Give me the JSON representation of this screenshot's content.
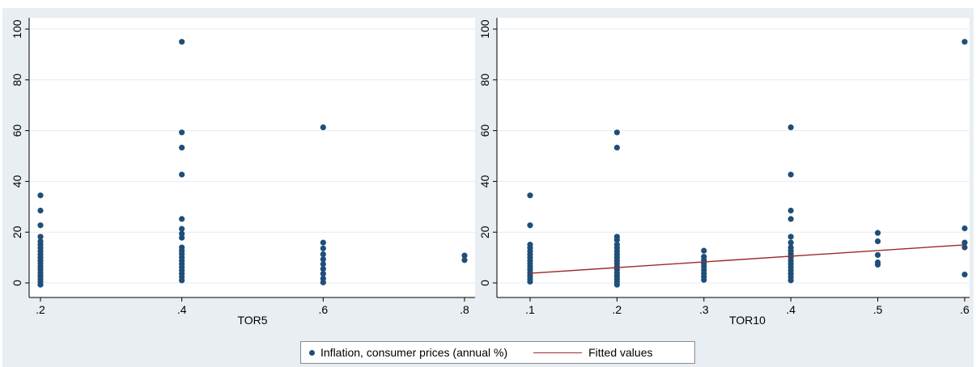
{
  "legend": {
    "scatter_label": "Inflation, consumer prices (annual %)",
    "line_label": "Fitted values"
  },
  "colors": {
    "point": "#1f4e79",
    "fit_line": "#9b2a2a",
    "outer_background": "#e8eef2",
    "plot_background": "#ffffff",
    "grid": "#e6ecf0"
  },
  "chart_data": [
    {
      "type": "scatter",
      "xlabel": "TOR5",
      "ylabel": "",
      "xticks": [
        0.2,
        0.4,
        0.6,
        0.8
      ],
      "xtick_labels": [
        ".2",
        ".4",
        ".6",
        ".8"
      ],
      "yticks": [
        0,
        20,
        40,
        60,
        80,
        100
      ],
      "xlim": [
        0.2,
        0.8
      ],
      "ylim": [
        0,
        100
      ],
      "grid": true,
      "series": [
        {
          "name": "Inflation, consumer prices (annual %)",
          "points": [
            [
              0.2,
              34.5
            ],
            [
              0.2,
              28.5
            ],
            [
              0.2,
              22.7
            ],
            [
              0.2,
              18.2
            ],
            [
              0.2,
              16.4
            ],
            [
              0.2,
              15.1
            ],
            [
              0.2,
              13.8
            ],
            [
              0.2,
              12.5
            ],
            [
              0.2,
              11.2
            ],
            [
              0.2,
              10.0
            ],
            [
              0.2,
              8.8
            ],
            [
              0.2,
              7.6
            ],
            [
              0.2,
              6.4
            ],
            [
              0.2,
              5.2
            ],
            [
              0.2,
              4.0
            ],
            [
              0.2,
              2.8
            ],
            [
              0.2,
              1.6
            ],
            [
              0.2,
              0.5
            ],
            [
              0.2,
              -0.7
            ],
            [
              0.4,
              95.0
            ],
            [
              0.4,
              59.3
            ],
            [
              0.4,
              53.3
            ],
            [
              0.4,
              42.7
            ],
            [
              0.4,
              25.2
            ],
            [
              0.4,
              21.3
            ],
            [
              0.4,
              19.4
            ],
            [
              0.4,
              17.8
            ],
            [
              0.4,
              14.0
            ],
            [
              0.4,
              12.7
            ],
            [
              0.4,
              11.4
            ],
            [
              0.4,
              10.1
            ],
            [
              0.4,
              8.8
            ],
            [
              0.4,
              7.5
            ],
            [
              0.4,
              6.2
            ],
            [
              0.4,
              4.9
            ],
            [
              0.4,
              3.6
            ],
            [
              0.4,
              2.3
            ],
            [
              0.4,
              1.0
            ],
            [
              0.6,
              61.3
            ],
            [
              0.6,
              15.9
            ],
            [
              0.6,
              13.6
            ],
            [
              0.6,
              11.3
            ],
            [
              0.6,
              9.3
            ],
            [
              0.6,
              7.4
            ],
            [
              0.6,
              5.5
            ],
            [
              0.6,
              3.6
            ],
            [
              0.6,
              1.7
            ],
            [
              0.6,
              0.2
            ],
            [
              0.8,
              10.8
            ],
            [
              0.8,
              9.0
            ]
          ]
        }
      ]
    },
    {
      "type": "scatter",
      "xlabel": "TOR10",
      "ylabel": "",
      "xticks": [
        0.1,
        0.2,
        0.3,
        0.4,
        0.5,
        0.6
      ],
      "xtick_labels": [
        ".1",
        ".2",
        ".3",
        ".4",
        ".5",
        ".6"
      ],
      "yticks": [
        0,
        20,
        40,
        60,
        80,
        100
      ],
      "xlim": [
        0.1,
        0.6
      ],
      "ylim": [
        0,
        100
      ],
      "grid": true,
      "series": [
        {
          "name": "Inflation, consumer prices (annual %)",
          "points": [
            [
              0.1,
              34.5
            ],
            [
              0.1,
              22.7
            ],
            [
              0.1,
              15.1
            ],
            [
              0.1,
              13.8
            ],
            [
              0.1,
              12.5
            ],
            [
              0.1,
              11.2
            ],
            [
              0.1,
              10.0
            ],
            [
              0.1,
              8.8
            ],
            [
              0.1,
              7.6
            ],
            [
              0.1,
              6.4
            ],
            [
              0.1,
              5.2
            ],
            [
              0.1,
              4.0
            ],
            [
              0.1,
              2.8
            ],
            [
              0.1,
              1.6
            ],
            [
              0.1,
              0.5
            ],
            [
              0.2,
              59.3
            ],
            [
              0.2,
              53.3
            ],
            [
              0.2,
              18.2
            ],
            [
              0.2,
              16.9
            ],
            [
              0.2,
              15.1
            ],
            [
              0.2,
              13.8
            ],
            [
              0.2,
              12.5
            ],
            [
              0.2,
              11.2
            ],
            [
              0.2,
              10.0
            ],
            [
              0.2,
              8.8
            ],
            [
              0.2,
              7.6
            ],
            [
              0.2,
              6.4
            ],
            [
              0.2,
              5.2
            ],
            [
              0.2,
              4.0
            ],
            [
              0.2,
              2.8
            ],
            [
              0.2,
              1.6
            ],
            [
              0.2,
              0.5
            ],
            [
              0.2,
              -0.7
            ],
            [
              0.3,
              12.7
            ],
            [
              0.3,
              10.3
            ],
            [
              0.3,
              9.0
            ],
            [
              0.3,
              7.7
            ],
            [
              0.3,
              6.4
            ],
            [
              0.3,
              5.1
            ],
            [
              0.3,
              3.8
            ],
            [
              0.3,
              2.5
            ],
            [
              0.3,
              1.2
            ],
            [
              0.4,
              61.3
            ],
            [
              0.4,
              42.7
            ],
            [
              0.4,
              28.5
            ],
            [
              0.4,
              25.2
            ],
            [
              0.4,
              18.2
            ],
            [
              0.4,
              15.9
            ],
            [
              0.4,
              14.0
            ],
            [
              0.4,
              12.7
            ],
            [
              0.4,
              11.4
            ],
            [
              0.4,
              10.1
            ],
            [
              0.4,
              8.8
            ],
            [
              0.4,
              7.5
            ],
            [
              0.4,
              6.2
            ],
            [
              0.4,
              4.9
            ],
            [
              0.4,
              3.6
            ],
            [
              0.4,
              2.3
            ],
            [
              0.4,
              1.0
            ],
            [
              0.5,
              19.7
            ],
            [
              0.5,
              16.4
            ],
            [
              0.5,
              11.0
            ],
            [
              0.5,
              8.1
            ],
            [
              0.5,
              7.2
            ],
            [
              0.6,
              95.0
            ],
            [
              0.6,
              21.5
            ],
            [
              0.6,
              15.9
            ],
            [
              0.6,
              14.0
            ],
            [
              0.6,
              3.3
            ]
          ]
        },
        {
          "name": "Fitted values",
          "type": "line",
          "x": [
            0.1,
            0.6
          ],
          "y": [
            3.8,
            15.0
          ]
        }
      ]
    }
  ]
}
